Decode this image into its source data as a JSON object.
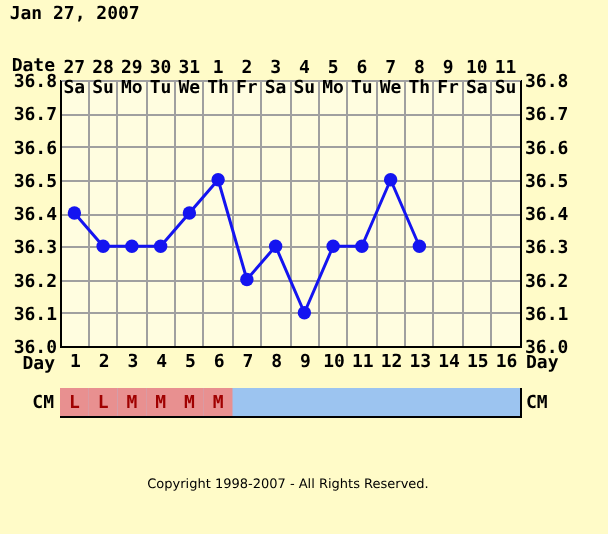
{
  "chart_data": {
    "type": "line",
    "title": "Jan 27, 2007",
    "xlabel": "Date",
    "x2label": "Day",
    "categories": [
      "27 Sa",
      "28 Su",
      "29 Mo",
      "30 Tu",
      "31 We",
      "1 Th",
      "2 Fr",
      "3 Sa",
      "4 Su",
      "5 Mo",
      "6 Tu",
      "7 We",
      "8 Th",
      "9 Fr",
      "10 Sa",
      "11 Su"
    ],
    "values": [
      36.4,
      36.3,
      36.3,
      36.3,
      36.4,
      36.5,
      36.2,
      36.3,
      36.1,
      36.3,
      36.3,
      36.5,
      36.3,
      null,
      null,
      null
    ],
    "color": "#1414f0",
    "marker": "circle",
    "line_style": "solid",
    "grid": true,
    "ylim": [
      36,
      36.8
    ],
    "yticks": [
      {
        "value": 36,
        "label": "36.0"
      },
      36.1,
      36.2,
      36.3,
      36.4,
      36.5,
      36.6,
      36.7,
      36.8
    ],
    "y2lim": [
      36,
      36.8
    ],
    "y2ticks": [
      {
        "value": 36,
        "label": "36.0"
      },
      36.1,
      36.2,
      36.3,
      36.4,
      36.5,
      36.6,
      36.7,
      36.8
    ],
    "x2lim": [
      0.5,
      16.5
    ],
    "x2ticks": [
      1,
      2,
      3,
      4,
      5,
      6,
      7,
      8,
      9,
      10,
      11,
      12,
      13,
      14,
      15,
      16
    ],
    "annotations": [
      "CM",
      "L",
      "L",
      "M",
      "M",
      "M",
      "M",
      "Copyright 1998-2007 - All Rights Reserved."
    ]
  }
}
